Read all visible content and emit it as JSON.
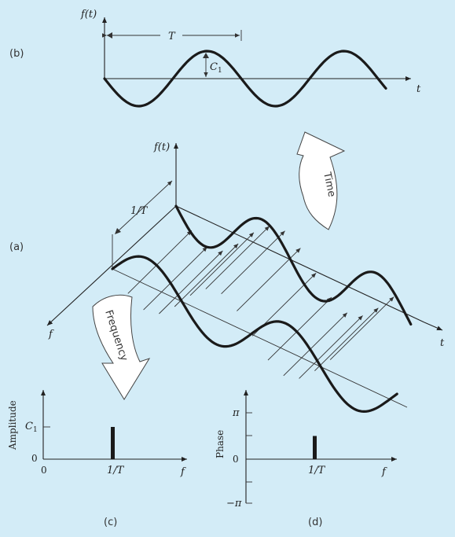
{
  "panel_b": {
    "label": "(b)",
    "y_axis": "f(t)",
    "x_axis": "t",
    "period": "T",
    "amplitude": "C",
    "amplitude_sub": "1"
  },
  "panel_a": {
    "label": "(a)",
    "y_axis": "f(t)",
    "x_axis": "t",
    "freq_axis": "f",
    "freq_marker": "1/T",
    "time_arrow": "Time",
    "freq_arrow": "Frequency"
  },
  "panel_c": {
    "label": "(c)",
    "y_axis": "Amplitude",
    "x_axis": "f",
    "y_tick": "C",
    "y_tick_sub": "1",
    "y_zero": "0",
    "x_zero": "0",
    "x_tick": "1/T",
    "bar_value": 1.0
  },
  "panel_d": {
    "label": "(d)",
    "y_axis": "Phase",
    "x_axis": "f",
    "y_top": "π",
    "y_zero": "0",
    "y_bottom": "−π",
    "x_tick": "1/T",
    "bar_value_fraction_of_pi": 0.5
  },
  "colors": {
    "background": "#d3ecf7",
    "ink": "#1a1a1a",
    "arrow_fill": "#ffffff"
  }
}
